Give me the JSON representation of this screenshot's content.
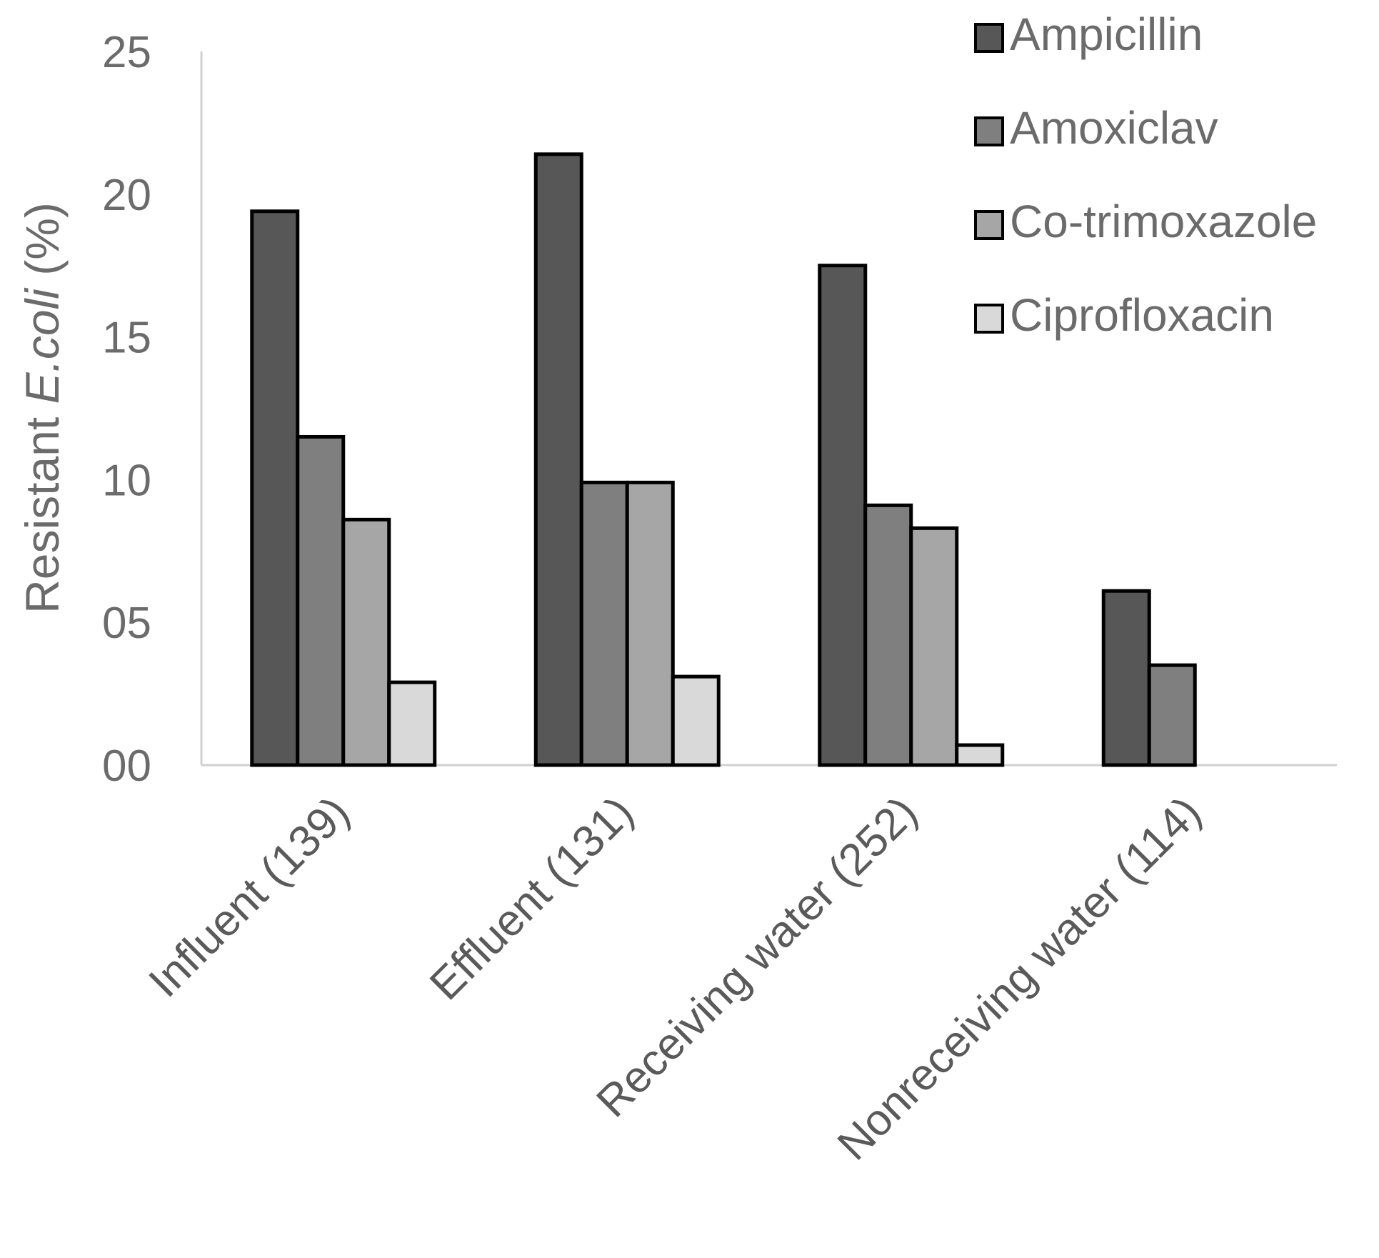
{
  "chart_data": {
    "type": "bar",
    "title": "",
    "xlabel": "",
    "ylabel_prefix": "Resistant ",
    "ylabel_italic": "E.coli",
    "ylabel_suffix": " (%)",
    "ylim": [
      0,
      25
    ],
    "ytick_values": [
      0,
      5,
      10,
      15,
      20,
      25
    ],
    "ytick_labels": [
      "00",
      "05",
      "10",
      "15",
      "20",
      "25"
    ],
    "grid": false,
    "legend_position": "top-right",
    "categories": [
      "Influent (139)",
      "Effluent (131)",
      "Receiving water (252)",
      "Nonreceiving water (114)"
    ],
    "series": [
      {
        "name": "Ampicillin",
        "color": "#575757",
        "values": [
          19.4,
          21.4,
          17.5,
          6.1
        ]
      },
      {
        "name": "Amoxiclav",
        "color": "#7f7f7f",
        "values": [
          11.5,
          9.9,
          9.1,
          3.5
        ]
      },
      {
        "name": "Co-trimoxazole",
        "color": "#a6a6a6",
        "values": [
          8.6,
          9.9,
          8.3,
          0
        ]
      },
      {
        "name": "Ciprofloxacin",
        "color": "#d9d9d9",
        "values": [
          2.9,
          3.1,
          0.7,
          0
        ]
      }
    ]
  }
}
